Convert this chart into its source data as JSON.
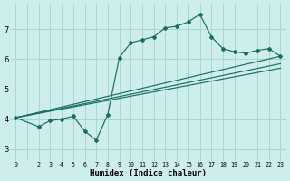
{
  "xlabel": "Humidex (Indice chaleur)",
  "bg_color": "#cdeeed",
  "grid_color": "#a8d8d0",
  "line_color": "#1a6e60",
  "xlim": [
    -0.5,
    23.5
  ],
  "ylim": [
    2.6,
    7.85
  ],
  "yticks": [
    3,
    4,
    5,
    6,
    7
  ],
  "main_x": [
    0,
    2,
    3,
    4,
    5,
    6,
    7,
    8,
    9,
    10,
    11,
    12,
    13,
    14,
    15,
    16,
    17,
    18,
    19,
    20,
    21,
    22,
    23
  ],
  "main_y": [
    4.05,
    3.75,
    3.95,
    4.0,
    4.1,
    3.6,
    3.3,
    4.15,
    6.05,
    6.55,
    6.65,
    6.75,
    7.05,
    7.1,
    7.25,
    7.5,
    6.75,
    6.35,
    6.25,
    6.2,
    6.3,
    6.35,
    6.1
  ],
  "straight_lines": [
    {
      "x": [
        0,
        23
      ],
      "y": [
        4.05,
        6.1
      ]
    },
    {
      "x": [
        0,
        23
      ],
      "y": [
        4.05,
        5.85
      ]
    },
    {
      "x": [
        0,
        23
      ],
      "y": [
        4.05,
        5.7
      ]
    }
  ]
}
